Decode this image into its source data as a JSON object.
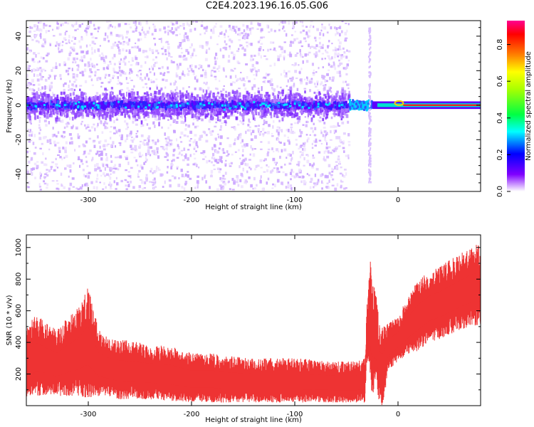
{
  "title": "C2E4.2023.196.16.05.G06",
  "colors": {
    "snr": "#ee3333",
    "grid": "#000000",
    "scatter": "#a040ff"
  },
  "chart_data": [
    {
      "type": "heatmap",
      "title": "C2E4.2023.196.16.05.G06",
      "xlabel": "Height of straight line (km)",
      "ylabel": "Frequency (Hz)",
      "xlim": [
        -360,
        80
      ],
      "ylim": [
        -50,
        49
      ],
      "xticks": [
        "-300",
        "-200",
        "-100",
        "0"
      ],
      "yticks": [
        "-40",
        "-20",
        "0",
        "20",
        "40"
      ],
      "xtick_values": [
        -300,
        -200,
        -100,
        0
      ],
      "ytick_values": [
        -40,
        -20,
        0,
        20,
        40
      ],
      "colorbar": {
        "label": "Normalized spectral amplitude",
        "ticks": [
          "0.0",
          "0.2",
          "0.4",
          "0.6",
          "0.8"
        ],
        "tick_values": [
          0.0,
          0.2,
          0.4,
          0.6,
          0.8
        ],
        "range": [
          0,
          0.93
        ]
      },
      "regions": [
        {
          "x_range": [
            -360,
            -47
          ],
          "y_center": 0,
          "y_spread": 49,
          "amplitude": 0.12,
          "note": "broadband noise"
        },
        {
          "x_range": [
            -47,
            -35
          ],
          "y_center": 0,
          "amplitude": 0.35
        },
        {
          "x_range": [
            -30,
            -27
          ],
          "y_center": 0,
          "y_spread": 45,
          "amplitude": 0.1
        },
        {
          "x_range": [
            -25,
            80
          ],
          "y_center": 0,
          "amplitude": 0.9,
          "note": "narrowband carrier"
        }
      ]
    },
    {
      "type": "area",
      "xlabel": "Height of straight line (km)",
      "ylabel": "SNR (10 * v/v)",
      "xlim": [
        -360,
        80
      ],
      "ylim": [
        0,
        1080
      ],
      "xticks": [
        "-300",
        "-200",
        "-100",
        "0"
      ],
      "yticks": [
        "200",
        "400",
        "600",
        "800",
        "1000"
      ],
      "xtick_values": [
        -300,
        -200,
        -100,
        0
      ],
      "ytick_values": [
        200,
        400,
        600,
        800,
        1000
      ],
      "envelope": {
        "x": [
          -360,
          -350,
          -340,
          -330,
          -320,
          -310,
          -300,
          -290,
          -280,
          -270,
          -260,
          -240,
          -220,
          -200,
          -180,
          -160,
          -140,
          -120,
          -100,
          -80,
          -60,
          -40,
          -32,
          -30,
          -27,
          -25,
          -22,
          -18,
          -15,
          -12,
          -10,
          -5,
          0,
          10,
          20,
          30,
          40,
          50,
          60,
          70,
          80
        ],
        "min": [
          50,
          60,
          70,
          60,
          60,
          60,
          50,
          60,
          60,
          40,
          40,
          40,
          30,
          20,
          20,
          20,
          20,
          20,
          20,
          20,
          20,
          20,
          20,
          300,
          200,
          50,
          150,
          0,
          0,
          100,
          220,
          250,
          280,
          320,
          350,
          400,
          420,
          450,
          480,
          500,
          500
        ],
        "max": [
          500,
          580,
          520,
          480,
          560,
          620,
          750,
          480,
          430,
          420,
          410,
          390,
          380,
          330,
          330,
          310,
          300,
          300,
          300,
          290,
          280,
          280,
          300,
          650,
          940,
          800,
          750,
          520,
          500,
          520,
          520,
          540,
          570,
          690,
          800,
          850,
          880,
          920,
          960,
          1000,
          1030
        ]
      }
    }
  ]
}
